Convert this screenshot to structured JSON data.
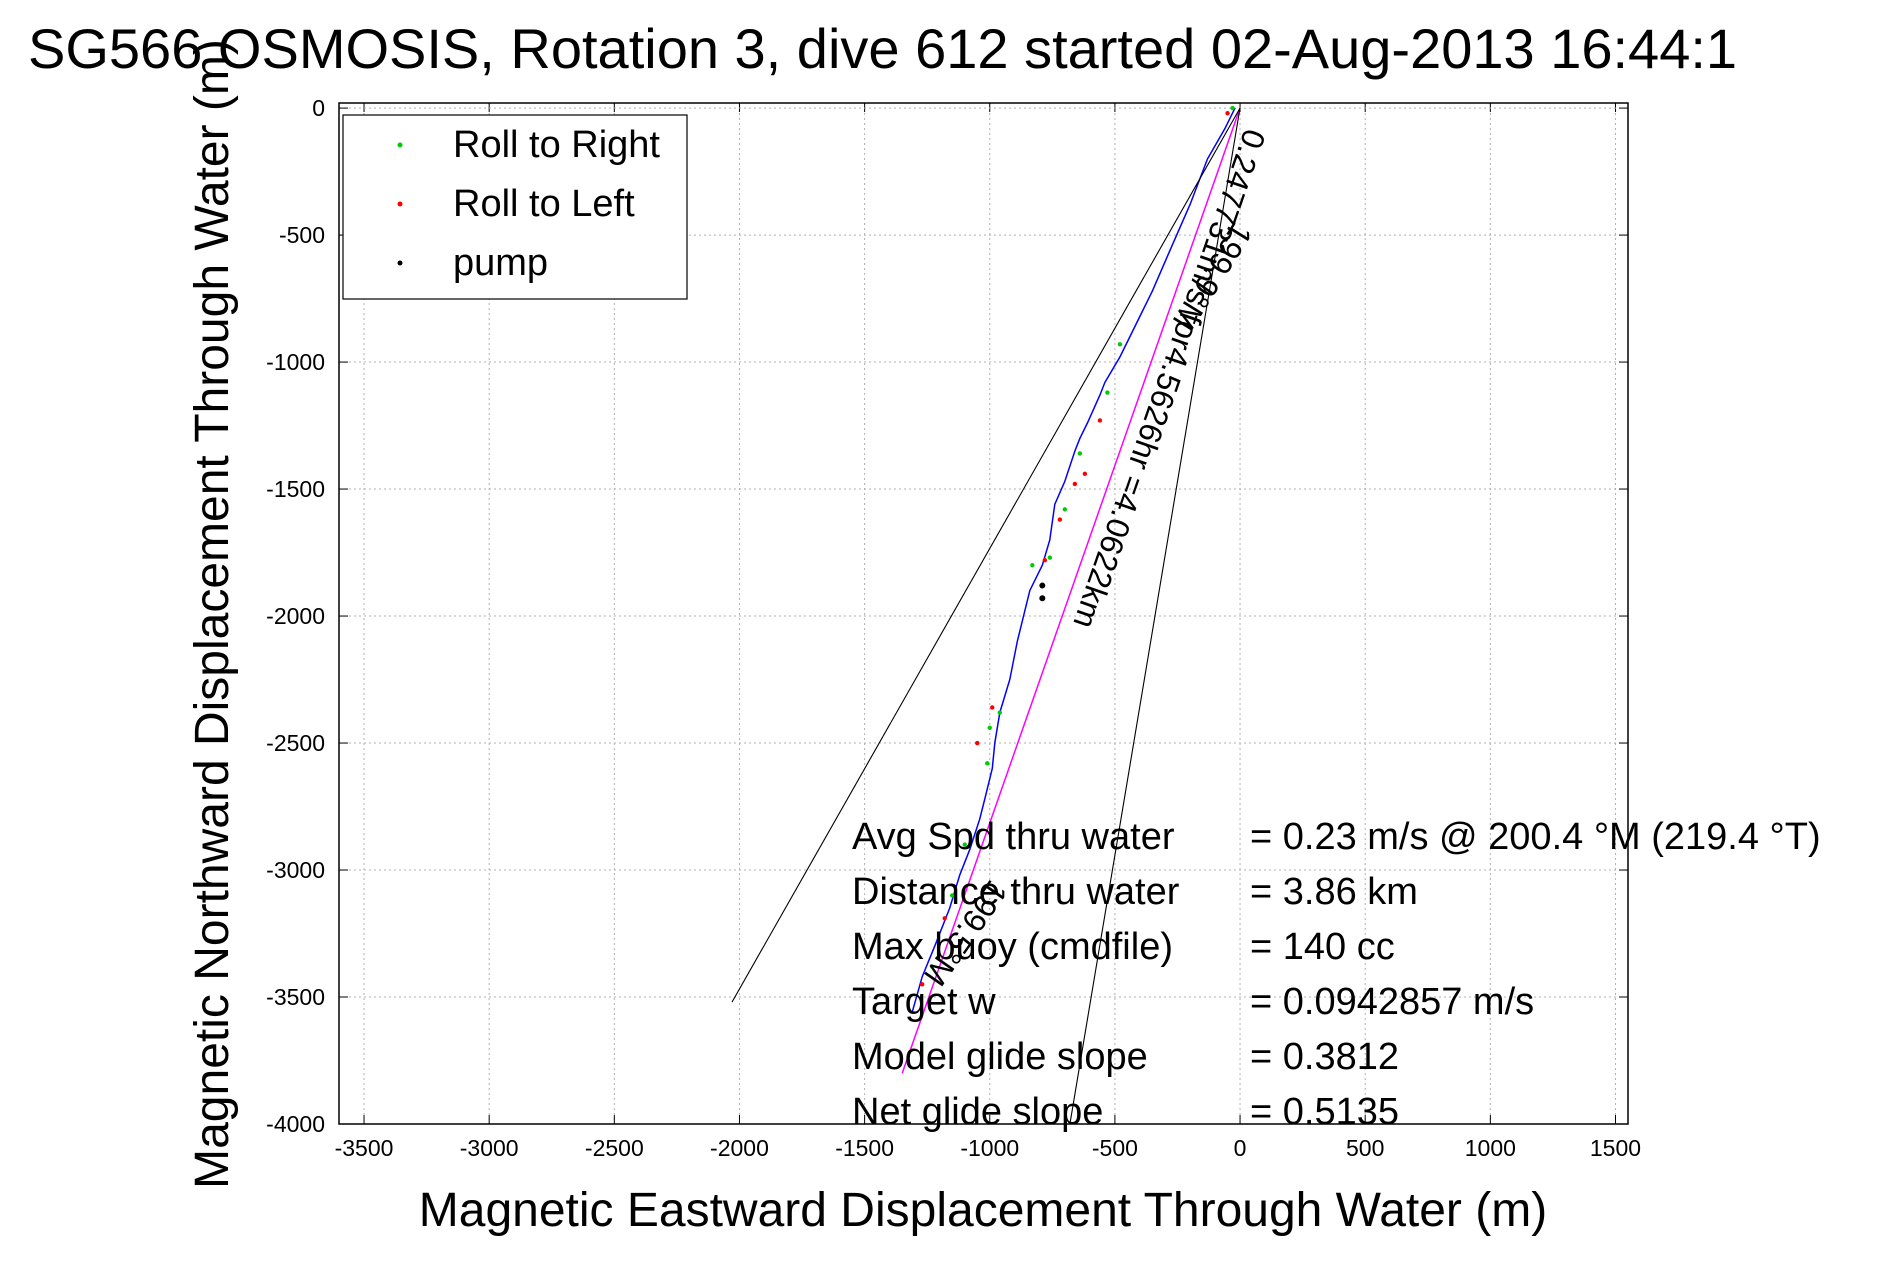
{
  "chart_data": {
    "type": "line",
    "title": "SG566 OSMOSIS, Rotation 3, dive 612 started 02-Aug-2013 16:44:1",
    "xlabel": "Magnetic Eastward Displacement Through Water (m)",
    "ylabel": "Magnetic Northward Displacement Through Water (m)",
    "xlim": [
      -3600,
      1550
    ],
    "ylim": [
      -4000,
      20
    ],
    "xticks": [
      -3500,
      -3000,
      -2500,
      -2000,
      -1500,
      -1000,
      -500,
      0,
      500,
      1000,
      1500
    ],
    "yticks": [
      0,
      -500,
      -1000,
      -1500,
      -2000,
      -2500,
      -3000,
      -3500,
      -4000
    ],
    "xtick_labels": [
      "-3500",
      "-3000",
      "-2500",
      "-2000",
      "-1500",
      "-1000",
      "-500",
      "0",
      "500",
      "1000",
      "1500"
    ],
    "ytick_labels": [
      "0",
      "-500",
      "-1000",
      "-1500",
      "-2000",
      "-2500",
      "-3000",
      "-3500",
      "-4000"
    ],
    "grid": true,
    "legend_position": "top-left",
    "legend": [
      {
        "label": "Roll to Right",
        "color": "#00cc00"
      },
      {
        "label": "Roll to Left",
        "color": "#ff0000"
      },
      {
        "label": "pump",
        "color": "#000000"
      }
    ],
    "colors": {
      "track": "#0000ff",
      "model_track": "#ff00ff",
      "cone_lines": "#000000",
      "grid": "#b0b0b0"
    },
    "series": [
      {
        "name": "track",
        "x": [
          -20,
          -60,
          -130,
          -200,
          -280,
          -350,
          -420,
          -480,
          -540,
          -560,
          -610,
          -640,
          -660,
          -700,
          -740,
          -760,
          -790,
          -840,
          -890,
          -920,
          -960,
          -980,
          -990,
          -1020,
          -1040,
          -1080,
          -1120,
          -1160,
          -1220,
          -1270,
          -1310
        ],
        "y": [
          0,
          -80,
          -200,
          -380,
          -560,
          -720,
          -860,
          -980,
          -1080,
          -1130,
          -1240,
          -1300,
          -1350,
          -1470,
          -1560,
          -1700,
          -1800,
          -1900,
          -2100,
          -2250,
          -2380,
          -2500,
          -2600,
          -2720,
          -2800,
          -2920,
          -3020,
          -3150,
          -3300,
          -3420,
          -3560
        ]
      },
      {
        "name": "model_track",
        "x": [
          0,
          -1350
        ],
        "y": [
          0,
          -3800
        ]
      },
      {
        "name": "cone_left",
        "x": [
          0,
          -2030
        ],
        "y": [
          0,
          -3520
        ]
      },
      {
        "name": "cone_right",
        "x": [
          0,
          -680
        ],
        "y": [
          0,
          -4000
        ]
      }
    ],
    "roll_right_points": {
      "x": [
        -30,
        -480,
        -530,
        -640,
        -700,
        -760,
        -830,
        -960,
        -1000,
        -1010,
        -1100,
        -1150,
        -1230
      ],
      "y": [
        0,
        -930,
        -1120,
        -1360,
        -1580,
        -1770,
        -1800,
        -2380,
        -2440,
        -2580,
        -2900,
        -3100,
        -3380
      ]
    },
    "roll_left_points": {
      "x": [
        -50,
        -560,
        -620,
        -660,
        -720,
        -780,
        -990,
        -1050,
        -1180,
        -1270
      ],
      "y": [
        -20,
        -1230,
        -1440,
        -1480,
        -1620,
        -1780,
        -2360,
        -2500,
        -3190,
        -3450
      ]
    },
    "pump_points": {
      "x": [
        -790,
        -790
      ],
      "y": [
        -1880,
        -1930
      ]
    },
    "annotations": {
      "along_track": "0.247731m/s for4.5626hr =4.0622km",
      "cone_left_label": "199.9°M",
      "cone_right_label": "199.5°M"
    },
    "stats": [
      {
        "label": "Avg Spd thru water",
        "value": "=  0.23 m/s @ 200.4 °M (219.4 °T)"
      },
      {
        "label": "Distance thru water",
        "value": "=  3.86 km"
      },
      {
        "label": "Max buoy (cmdfile)",
        "value": "= 140 cc"
      },
      {
        "label": "Target w",
        "value": "= 0.0942857 m/s"
      },
      {
        "label": "Model glide slope",
        "value": "= 0.3812"
      },
      {
        "label": "Net glide slope",
        "value": "= 0.5135"
      }
    ]
  }
}
